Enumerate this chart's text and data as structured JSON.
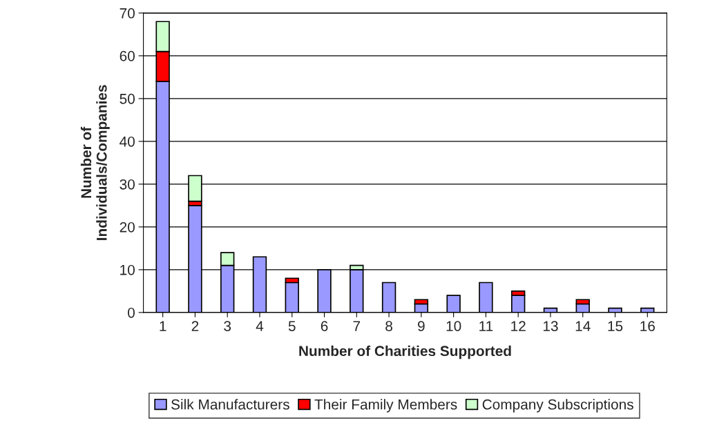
{
  "chart_data": {
    "type": "bar",
    "stacked": true,
    "xlabel": "Number of Charities Supported",
    "ylabel": "Number of\nIndividuals/Companies",
    "categories": [
      "1",
      "2",
      "3",
      "4",
      "5",
      "6",
      "7",
      "8",
      "9",
      "10",
      "11",
      "12",
      "13",
      "14",
      "15",
      "16"
    ],
    "series": [
      {
        "name": "Silk Manufacturers",
        "color": "#9999ff",
        "values": [
          54,
          25,
          11,
          13,
          7,
          10,
          10,
          7,
          2,
          4,
          7,
          4,
          1,
          2,
          1,
          1
        ]
      },
      {
        "name": "Their Family Members",
        "color": "#ff0000",
        "values": [
          7,
          1,
          null,
          null,
          1,
          null,
          null,
          null,
          1,
          null,
          null,
          1,
          null,
          1,
          null,
          null
        ]
      },
      {
        "name": "Company Subscriptions",
        "color": "#ccffcc",
        "values": [
          7,
          6,
          3,
          null,
          null,
          null,
          1,
          null,
          null,
          null,
          null,
          null,
          null,
          null,
          null,
          null
        ]
      }
    ],
    "ylim": [
      0,
      70
    ],
    "yticks": [
      0,
      10,
      20,
      30,
      40,
      50,
      60,
      70
    ],
    "grid": "y",
    "legend": "bottom"
  }
}
